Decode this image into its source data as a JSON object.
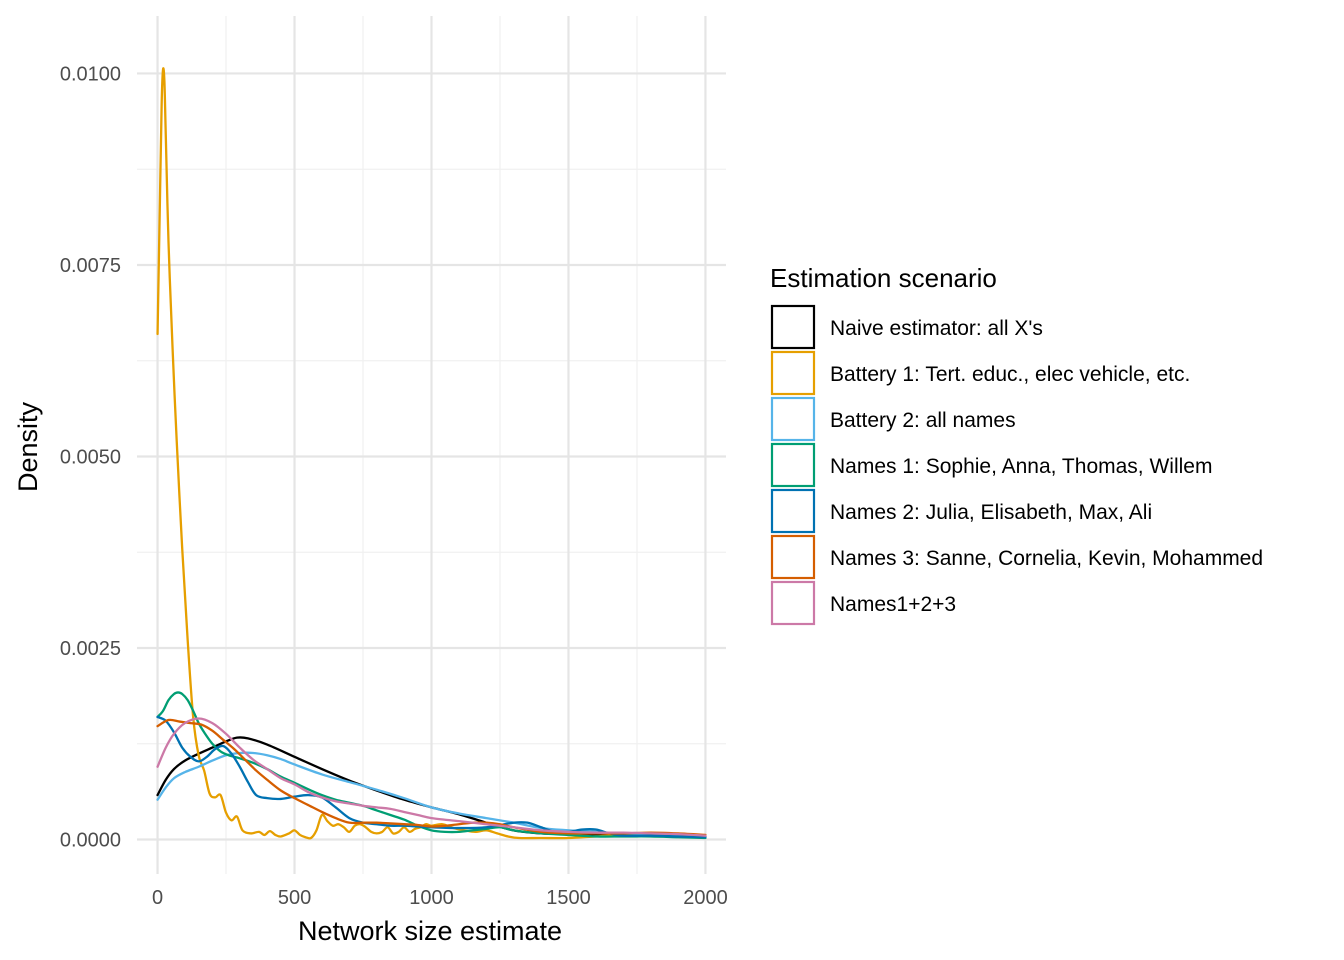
{
  "chart_data": {
    "type": "line",
    "xlabel": "Network size estimate",
    "ylabel": "Density",
    "xlim": [
      -75,
      2075
    ],
    "ylim": [
      -0.00045,
      0.01075
    ],
    "x_ticks": [
      0,
      500,
      1000,
      1500,
      2000
    ],
    "x_tick_labels": [
      "0",
      "500",
      "1000",
      "1500",
      "2000"
    ],
    "y_ticks": [
      0,
      0.0025,
      0.005,
      0.0075,
      0.01
    ],
    "y_tick_labels": [
      "0.0000",
      "0.0025",
      "0.0050",
      "0.0075",
      "0.0100"
    ],
    "grid": true,
    "legend_position": "right",
    "legend": {
      "title": "Estimation scenario"
    },
    "series": [
      {
        "name": "Naive estimator: all X's",
        "color": "#000000",
        "points": [
          [
            0,
            0.00058
          ],
          [
            30,
            0.00078
          ],
          [
            60,
            0.00092
          ],
          [
            100,
            0.00103
          ],
          [
            150,
            0.00112
          ],
          [
            200,
            0.0012
          ],
          [
            250,
            0.00128
          ],
          [
            290,
            0.00133
          ],
          [
            330,
            0.00132
          ],
          [
            400,
            0.00124
          ],
          [
            500,
            0.00108
          ],
          [
            600,
            0.00092
          ],
          [
            700,
            0.00077
          ],
          [
            800,
            0.00064
          ],
          [
            900,
            0.00052
          ],
          [
            1000,
            0.00042
          ],
          [
            1100,
            0.00033
          ],
          [
            1200,
            0.00022
          ],
          [
            1300,
            0.00012
          ],
          [
            1400,
            8e-05
          ],
          [
            1500,
            7e-05
          ],
          [
            1600,
            6e-05
          ],
          [
            1700,
            6e-05
          ],
          [
            1800,
            6e-05
          ],
          [
            1900,
            5e-05
          ],
          [
            2000,
            4e-05
          ]
        ]
      },
      {
        "name": "Battery 1: Tert. educ., elec vehicle, etc.",
        "color": "#E69F00",
        "points": [
          [
            0,
            0.0066
          ],
          [
            8,
            0.0082
          ],
          [
            15,
            0.0096
          ],
          [
            20,
            0.01005
          ],
          [
            25,
            0.0099
          ],
          [
            30,
            0.0092
          ],
          [
            40,
            0.0078
          ],
          [
            55,
            0.0064
          ],
          [
            70,
            0.0052
          ],
          [
            90,
            0.0038
          ],
          [
            110,
            0.0026
          ],
          [
            130,
            0.0016
          ],
          [
            150,
            0.0011
          ],
          [
            170,
            0.0009
          ],
          [
            190,
            0.0006
          ],
          [
            210,
            0.00055
          ],
          [
            230,
            0.00058
          ],
          [
            250,
            0.00035
          ],
          [
            270,
            0.00025
          ],
          [
            290,
            0.0003
          ],
          [
            310,
            0.00012
          ],
          [
            340,
            8e-05
          ],
          [
            370,
            0.0001
          ],
          [
            390,
            6e-05
          ],
          [
            410,
            0.00011
          ],
          [
            430,
            6e-05
          ],
          [
            450,
            4e-05
          ],
          [
            480,
            8e-05
          ],
          [
            500,
            0.00012
          ],
          [
            520,
            6e-05
          ],
          [
            540,
            3e-05
          ],
          [
            560,
            2e-05
          ],
          [
            580,
            0.00012
          ],
          [
            600,
            0.00032
          ],
          [
            620,
            0.00024
          ],
          [
            640,
            0.00018
          ],
          [
            660,
            0.0002
          ],
          [
            680,
            0.00016
          ],
          [
            700,
            0.0001
          ],
          [
            720,
            0.00018
          ],
          [
            740,
            0.0002
          ],
          [
            760,
            0.00016
          ],
          [
            780,
            0.0001
          ],
          [
            800,
            8e-05
          ],
          [
            820,
            0.0001
          ],
          [
            840,
            0.00016
          ],
          [
            860,
            8e-05
          ],
          [
            880,
            0.0001
          ],
          [
            900,
            0.00016
          ],
          [
            920,
            0.0001
          ],
          [
            940,
            0.00014
          ],
          [
            960,
            0.00016
          ],
          [
            980,
            0.0002
          ],
          [
            1000,
            0.00018
          ],
          [
            1040,
            0.0002
          ],
          [
            1080,
            0.00015
          ],
          [
            1120,
            0.00012
          ],
          [
            1160,
            0.0001
          ],
          [
            1200,
            0.00012
          ],
          [
            1240,
            8e-05
          ],
          [
            1280,
            4e-05
          ],
          [
            1320,
            2e-05
          ],
          [
            1400,
            2e-05
          ],
          [
            1500,
            2e-05
          ],
          [
            1600,
            4e-05
          ],
          [
            1700,
            6e-05
          ],
          [
            1800,
            6e-05
          ],
          [
            1900,
            4e-05
          ],
          [
            2000,
            4e-05
          ]
        ]
      },
      {
        "name": "Battery 2: all names",
        "color": "#56B4E9",
        "points": [
          [
            0,
            0.00052
          ],
          [
            30,
            0.00068
          ],
          [
            60,
            0.0008
          ],
          [
            100,
            0.00088
          ],
          [
            150,
            0.00095
          ],
          [
            200,
            0.00103
          ],
          [
            250,
            0.0011
          ],
          [
            300,
            0.00113
          ],
          [
            350,
            0.00113
          ],
          [
            400,
            0.0011
          ],
          [
            450,
            0.00105
          ],
          [
            500,
            0.00098
          ],
          [
            600,
            0.00085
          ],
          [
            700,
            0.00075
          ],
          [
            800,
            0.00065
          ],
          [
            900,
            0.00054
          ],
          [
            1000,
            0.00042
          ],
          [
            1100,
            0.00034
          ],
          [
            1200,
            0.00028
          ],
          [
            1300,
            0.00022
          ],
          [
            1400,
            0.00015
          ],
          [
            1500,
            0.00012
          ],
          [
            1600,
            0.0001
          ],
          [
            1700,
            8e-05
          ],
          [
            1800,
            7e-05
          ],
          [
            1900,
            6e-05
          ],
          [
            2000,
            4e-05
          ]
        ]
      },
      {
        "name": "Names 1: Sophie, Anna, Thomas, Willem",
        "color": "#009E73",
        "points": [
          [
            0,
            0.0016
          ],
          [
            20,
            0.00168
          ],
          [
            40,
            0.00182
          ],
          [
            60,
            0.0019
          ],
          [
            75,
            0.00192
          ],
          [
            90,
            0.0019
          ],
          [
            110,
            0.00182
          ],
          [
            130,
            0.00168
          ],
          [
            150,
            0.00152
          ],
          [
            170,
            0.0014
          ],
          [
            200,
            0.00125
          ],
          [
            230,
            0.00115
          ],
          [
            260,
            0.0011
          ],
          [
            300,
            0.00106
          ],
          [
            350,
            0.001
          ],
          [
            400,
            0.00092
          ],
          [
            450,
            0.00082
          ],
          [
            500,
            0.00074
          ],
          [
            560,
            0.00064
          ],
          [
            600,
            0.00058
          ],
          [
            650,
            0.00052
          ],
          [
            700,
            0.00048
          ],
          [
            750,
            0.00044
          ],
          [
            800,
            0.00038
          ],
          [
            850,
            0.00032
          ],
          [
            900,
            0.00026
          ],
          [
            950,
            0.00018
          ],
          [
            1000,
            0.00012
          ],
          [
            1050,
            0.0001
          ],
          [
            1100,
            0.0001
          ],
          [
            1150,
            0.00012
          ],
          [
            1200,
            0.00014
          ],
          [
            1250,
            0.00016
          ],
          [
            1300,
            0.00012
          ],
          [
            1400,
            8e-05
          ],
          [
            1500,
            6e-05
          ],
          [
            1600,
            4e-05
          ],
          [
            1700,
            4e-05
          ],
          [
            1800,
            4e-05
          ],
          [
            1900,
            3e-05
          ],
          [
            2000,
            2e-05
          ]
        ]
      },
      {
        "name": "Names 2: Julia, Elisabeth, Max, Ali",
        "color": "#0072B2",
        "points": [
          [
            0,
            0.0016
          ],
          [
            30,
            0.00155
          ],
          [
            60,
            0.0014
          ],
          [
            90,
            0.0012
          ],
          [
            120,
            0.00108
          ],
          [
            150,
            0.00102
          ],
          [
            180,
            0.00108
          ],
          [
            210,
            0.00118
          ],
          [
            240,
            0.00122
          ],
          [
            270,
            0.00112
          ],
          [
            300,
            0.00095
          ],
          [
            330,
            0.00075
          ],
          [
            360,
            0.00058
          ],
          [
            400,
            0.00054
          ],
          [
            450,
            0.00053
          ],
          [
            500,
            0.00056
          ],
          [
            550,
            0.00058
          ],
          [
            600,
            0.00055
          ],
          [
            650,
            0.00042
          ],
          [
            700,
            0.00028
          ],
          [
            750,
            0.00022
          ],
          [
            800,
            0.0002
          ],
          [
            850,
            0.00018
          ],
          [
            900,
            0.00018
          ],
          [
            950,
            0.00017
          ],
          [
            1000,
            0.00016
          ],
          [
            1100,
            0.00015
          ],
          [
            1200,
            0.00016
          ],
          [
            1300,
            0.00022
          ],
          [
            1350,
            0.00022
          ],
          [
            1400,
            0.00016
          ],
          [
            1450,
            0.0001
          ],
          [
            1500,
            0.0001
          ],
          [
            1550,
            0.00013
          ],
          [
            1600,
            0.00013
          ],
          [
            1650,
            8e-05
          ],
          [
            1700,
            5e-05
          ],
          [
            1800,
            5e-05
          ],
          [
            1900,
            4e-05
          ],
          [
            2000,
            3e-05
          ]
        ]
      },
      {
        "name": "Names 3: Sanne, Cornelia, Kevin, Mohammed",
        "color": "#D55E00",
        "points": [
          [
            0,
            0.00148
          ],
          [
            40,
            0.00156
          ],
          [
            80,
            0.00154
          ],
          [
            120,
            0.00152
          ],
          [
            160,
            0.0015
          ],
          [
            200,
            0.00142
          ],
          [
            240,
            0.0013
          ],
          [
            280,
            0.00118
          ],
          [
            320,
            0.00104
          ],
          [
            360,
            0.0009
          ],
          [
            400,
            0.00078
          ],
          [
            450,
            0.00064
          ],
          [
            500,
            0.00054
          ],
          [
            550,
            0.00045
          ],
          [
            600,
            0.00036
          ],
          [
            650,
            0.00028
          ],
          [
            700,
            0.00022
          ],
          [
            750,
            0.00022
          ],
          [
            800,
            0.00022
          ],
          [
            850,
            0.00021
          ],
          [
            900,
            0.0002
          ],
          [
            950,
            0.00019
          ],
          [
            1000,
            0.00017
          ],
          [
            1050,
            0.00018
          ],
          [
            1100,
            0.0002
          ],
          [
            1150,
            0.00022
          ],
          [
            1200,
            0.00022
          ],
          [
            1250,
            0.0002
          ],
          [
            1300,
            0.00016
          ],
          [
            1400,
            0.0001
          ],
          [
            1500,
            8e-05
          ],
          [
            1600,
            8e-05
          ],
          [
            1700,
            8e-05
          ],
          [
            1800,
            9e-05
          ],
          [
            1900,
            8e-05
          ],
          [
            2000,
            6e-05
          ]
        ]
      },
      {
        "name": "Names1+2+3",
        "color": "#CC79A7",
        "points": [
          [
            0,
            0.00095
          ],
          [
            30,
            0.0012
          ],
          [
            60,
            0.00138
          ],
          [
            100,
            0.00152
          ],
          [
            150,
            0.00158
          ],
          [
            200,
            0.00152
          ],
          [
            250,
            0.00138
          ],
          [
            300,
            0.0012
          ],
          [
            350,
            0.00104
          ],
          [
            400,
            0.00092
          ],
          [
            450,
            0.0008
          ],
          [
            500,
            0.00072
          ],
          [
            550,
            0.00062
          ],
          [
            600,
            0.00055
          ],
          [
            650,
            0.0005
          ],
          [
            700,
            0.00047
          ],
          [
            750,
            0.00044
          ],
          [
            800,
            0.00042
          ],
          [
            850,
            0.0004
          ],
          [
            900,
            0.00036
          ],
          [
            950,
            0.00032
          ],
          [
            1000,
            0.00028
          ],
          [
            1100,
            0.00024
          ],
          [
            1200,
            0.0002
          ],
          [
            1300,
            0.00016
          ],
          [
            1400,
            0.00012
          ],
          [
            1500,
            0.0001
          ],
          [
            1600,
            9e-05
          ],
          [
            1700,
            9e-05
          ],
          [
            1800,
            8e-05
          ],
          [
            1900,
            7e-05
          ],
          [
            2000,
            5e-05
          ]
        ]
      }
    ]
  }
}
